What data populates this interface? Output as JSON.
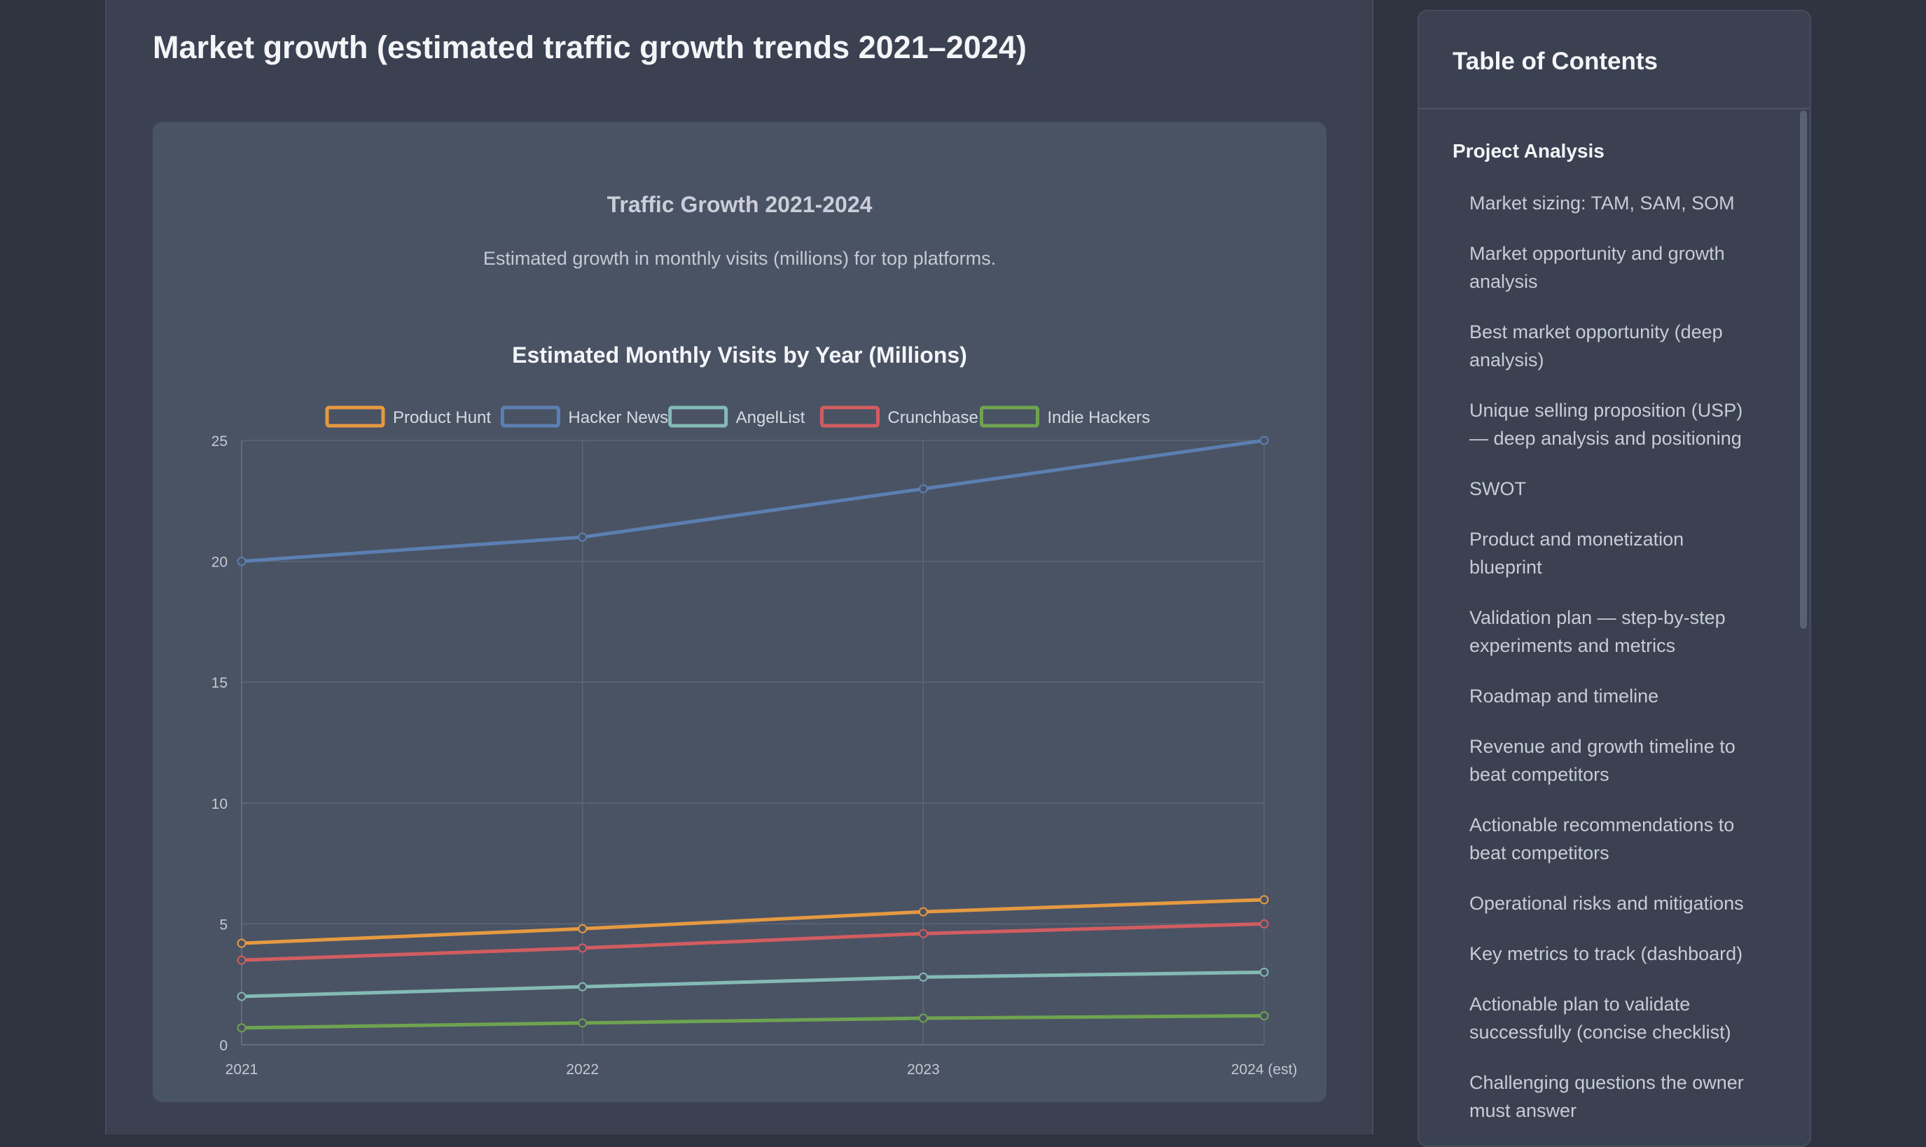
{
  "section": {
    "title": "Market growth (estimated traffic growth trends 2021–2024)"
  },
  "chart_card": {
    "heading": "Traffic Growth 2021-2024",
    "subheading": "Estimated growth in monthly visits (millions) for top platforms."
  },
  "chart_data": {
    "type": "line",
    "title": "Estimated Monthly Visits by Year (Millions)",
    "xlabel": "",
    "ylabel": "",
    "categories": [
      "2021",
      "2022",
      "2023",
      "2024 (est)"
    ],
    "ylim": [
      0,
      25
    ],
    "yticks": [
      0,
      5,
      10,
      15,
      20,
      25
    ],
    "grid": true,
    "legend_position": "top",
    "series": [
      {
        "name": "Product Hunt",
        "color": "#e59a42",
        "values": [
          4.2,
          4.8,
          5.5,
          6.0
        ]
      },
      {
        "name": "Hacker News",
        "color": "#5a7fb0",
        "values": [
          20,
          21,
          23,
          25
        ]
      },
      {
        "name": "AngelList",
        "color": "#84bab5",
        "values": [
          2.0,
          2.4,
          2.8,
          3.0
        ]
      },
      {
        "name": "Crunchbase",
        "color": "#d25d61",
        "values": [
          3.5,
          4.0,
          4.6,
          5.0
        ]
      },
      {
        "name": "Indie Hackers",
        "color": "#6ea350",
        "values": [
          0.7,
          0.9,
          1.1,
          1.2
        ]
      }
    ]
  },
  "toc": {
    "title": "Table of Contents",
    "section_label": "Project Analysis",
    "items": [
      [
        "Market sizing: TAM, SAM, SOM"
      ],
      [
        "Market opportunity and growth",
        "analysis"
      ],
      [
        "Best market opportunity (deep",
        "analysis)"
      ],
      [
        "Unique selling proposition (USP)",
        "— deep analysis and positioning"
      ],
      [
        "SWOT"
      ],
      [
        "Product and monetization",
        "blueprint"
      ],
      [
        "Validation plan — step-by-step",
        "experiments and metrics"
      ],
      [
        "Roadmap and timeline"
      ],
      [
        "Revenue and growth timeline to",
        "beat competitors"
      ],
      [
        "Actionable recommendations to",
        "beat competitors"
      ],
      [
        "Operational risks and mitigations"
      ],
      [
        "Key metrics to track (dashboard)"
      ],
      [
        "Actionable plan to validate",
        "successfully (concise checklist)"
      ],
      [
        "Challenging questions the owner",
        "must answer"
      ]
    ]
  }
}
